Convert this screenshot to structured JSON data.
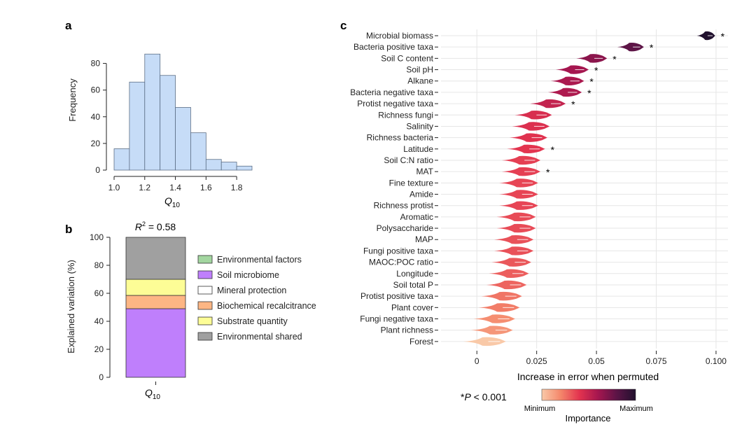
{
  "panels": {
    "a": "a",
    "b": "b",
    "c": "c"
  },
  "chart_data": [
    {
      "id": "a",
      "type": "bar",
      "title": "",
      "xlabel": "Q",
      "xlabel_sub": "10",
      "ylabel": "Frequency",
      "bins": [
        {
          "x0": 1.0,
          "x1": 1.1,
          "value": 16
        },
        {
          "x0": 1.1,
          "x1": 1.2,
          "value": 66
        },
        {
          "x0": 1.2,
          "x1": 1.3,
          "value": 87
        },
        {
          "x0": 1.3,
          "x1": 1.4,
          "value": 71
        },
        {
          "x0": 1.4,
          "x1": 1.5,
          "value": 47
        },
        {
          "x0": 1.5,
          "x1": 1.6,
          "value": 28
        },
        {
          "x0": 1.6,
          "x1": 1.7,
          "value": 8
        },
        {
          "x0": 1.7,
          "x1": 1.8,
          "value": 6
        },
        {
          "x0": 1.8,
          "x1": 1.9,
          "value": 3
        }
      ],
      "xlim": [
        1.0,
        1.9
      ],
      "xticks": [
        1.0,
        1.2,
        1.4,
        1.6,
        1.8
      ],
      "xtick_labels": [
        "1.0",
        "1.2",
        "1.4",
        "1.6",
        "1.8"
      ],
      "ylim": [
        0,
        95
      ],
      "yticks": [
        0,
        20,
        40,
        60,
        80
      ],
      "ytick_labels": [
        "0",
        "20",
        "40",
        "60",
        "80"
      ],
      "bar_color": "#c6dcf7",
      "edge_color": "#5d6f86"
    },
    {
      "id": "b",
      "type": "bar",
      "stacked": true,
      "title_pre": "R",
      "title_sup": "2",
      "title_post": " = 0.58",
      "ylabel": "Explained variation (%)",
      "category": "Q",
      "category_sub": "10",
      "ylim": [
        0,
        100
      ],
      "yticks": [
        0,
        20,
        40,
        60,
        80,
        100
      ],
      "ytick_labels": [
        "0",
        "20",
        "40",
        "60",
        "80",
        "100"
      ],
      "segments": [
        {
          "name": "Soil microbiome",
          "value": 49,
          "color": "#bf7ffc"
        },
        {
          "name": "Biochemical recalcitrance",
          "value": 9.5,
          "color": "#fdb684"
        },
        {
          "name": "Substrate quantity",
          "value": 11.5,
          "color": "#fdfd96"
        },
        {
          "name": "Environmental shared",
          "value": 30,
          "color": "#a0a0a0"
        }
      ],
      "legend": [
        {
          "label": "Environmental factors",
          "color": "#a3d6a0"
        },
        {
          "label": "Soil microbiome",
          "color": "#bf7ffc"
        },
        {
          "label": "Mineral protection",
          "color": "#ffffff"
        },
        {
          "label": "Biochemical recalcitrance",
          "color": "#fdb684"
        },
        {
          "label": "Substrate quantity",
          "color": "#fdfd96"
        },
        {
          "label": "Environmental shared",
          "color": "#a0a0a0"
        }
      ]
    },
    {
      "id": "c",
      "type": "violin",
      "xlabel": "Increase in error when permuted",
      "xlim": [
        -0.015,
        0.105
      ],
      "xticks": [
        0,
        0.025,
        0.05,
        0.075,
        0.1
      ],
      "xtick_labels": [
        "0",
        "0.025",
        "0.05",
        "0.075",
        "0.100"
      ],
      "sig_note_star": "*",
      "sig_note_p": "P",
      "sig_note_rest": " < 0.001",
      "colorbar_title": "Importance",
      "colorbar_min": "Minimum",
      "colorbar_max": "Maximum",
      "colorbar_colors": [
        "#f9c9a8",
        "#f4876b",
        "#e3334f",
        "#a5164f",
        "#5b1446",
        "#21112e"
      ],
      "predictors": [
        {
          "name": "Microbial biomass",
          "center": 0.097,
          "sig": true
        },
        {
          "name": "Bacteria positive taxa",
          "center": 0.066,
          "sig": true
        },
        {
          "name": "Soil C content",
          "center": 0.05,
          "sig": true
        },
        {
          "name": "Soil pH",
          "center": 0.042,
          "sig": true
        },
        {
          "name": "Alkane",
          "center": 0.04,
          "sig": true
        },
        {
          "name": "Bacteria negative taxa",
          "center": 0.039,
          "sig": true
        },
        {
          "name": "Protist negative taxa",
          "center": 0.032,
          "sig": true
        },
        {
          "name": "Richness fungi",
          "center": 0.026,
          "sig": false
        },
        {
          "name": "Salinity",
          "center": 0.025,
          "sig": false
        },
        {
          "name": "Richness bacteria",
          "center": 0.024,
          "sig": false
        },
        {
          "name": "Latitude",
          "center": 0.023,
          "sig": true
        },
        {
          "name": "Soil C:N ratio",
          "center": 0.021,
          "sig": false
        },
        {
          "name": "MAT",
          "center": 0.021,
          "sig": true
        },
        {
          "name": "Fine texture",
          "center": 0.02,
          "sig": false
        },
        {
          "name": "Amide",
          "center": 0.02,
          "sig": false
        },
        {
          "name": "Richness protist",
          "center": 0.02,
          "sig": false
        },
        {
          "name": "Aromatic",
          "center": 0.019,
          "sig": false
        },
        {
          "name": "Polysaccharide",
          "center": 0.019,
          "sig": false
        },
        {
          "name": "MAP",
          "center": 0.018,
          "sig": false
        },
        {
          "name": "Fungi positive taxa",
          "center": 0.018,
          "sig": false
        },
        {
          "name": "MAOC:POC ratio",
          "center": 0.017,
          "sig": false
        },
        {
          "name": "Longitude",
          "center": 0.016,
          "sig": false
        },
        {
          "name": "Soil total P",
          "center": 0.015,
          "sig": false
        },
        {
          "name": "Protist positive taxa",
          "center": 0.013,
          "sig": false
        },
        {
          "name": "Plant cover",
          "center": 0.012,
          "sig": false
        },
        {
          "name": "Fungi negative taxa",
          "center": 0.01,
          "sig": false
        },
        {
          "name": "Plant richness",
          "center": 0.009,
          "sig": false
        },
        {
          "name": "Forest",
          "center": 0.006,
          "sig": false
        }
      ]
    }
  ]
}
